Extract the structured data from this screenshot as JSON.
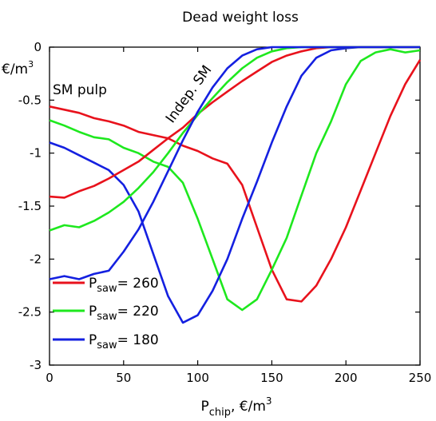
{
  "chart_data": {
    "type": "line",
    "title": "Dead weight loss",
    "xlabel": {
      "main": "P",
      "sub": "chip",
      "rest": ", €/m",
      "sup": "3"
    },
    "ylabel": {
      "main": "€/m",
      "sup": "3"
    },
    "xlim": [
      0,
      250
    ],
    "ylim": [
      -3,
      0
    ],
    "xticks": [
      0,
      50,
      100,
      150,
      200,
      250
    ],
    "yticks": [
      0,
      -0.5,
      -1,
      -1.5,
      -2,
      -2.5,
      -3
    ],
    "xtick_labels": [
      "0",
      "50",
      "100",
      "150",
      "200",
      "250"
    ],
    "ytick_labels": [
      "0",
      "-0.5",
      "-1",
      "-1.5",
      "-2",
      "-2.5",
      "-3"
    ],
    "grid": false,
    "legend_position": "bottom-left",
    "annotations": [
      {
        "text": "SM pulp"
      },
      {
        "text": "Indep. SM"
      }
    ],
    "series": [
      {
        "name": "P_saw = 260",
        "label_main": "P",
        "label_sub": "saw",
        "label_value": "= 260",
        "color": "#e8121c",
        "group": "sm_pulp",
        "points": [
          [
            0,
            -0.56
          ],
          [
            10,
            -0.59
          ],
          [
            20,
            -0.62
          ],
          [
            30,
            -0.67
          ],
          [
            40,
            -0.7
          ],
          [
            50,
            -0.74
          ],
          [
            60,
            -0.8
          ],
          [
            70,
            -0.83
          ],
          [
            80,
            -0.86
          ],
          [
            90,
            -0.93
          ],
          [
            100,
            -0.98
          ],
          [
            110,
            -1.05
          ],
          [
            120,
            -1.1
          ],
          [
            130,
            -1.3
          ],
          [
            140,
            -1.7
          ],
          [
            150,
            -2.1
          ],
          [
            160,
            -2.38
          ],
          [
            170,
            -2.4
          ],
          [
            180,
            -2.25
          ],
          [
            190,
            -2.0
          ],
          [
            200,
            -1.7
          ],
          [
            210,
            -1.35
          ],
          [
            220,
            -1.0
          ],
          [
            230,
            -0.65
          ],
          [
            240,
            -0.35
          ],
          [
            250,
            -0.12
          ]
        ]
      },
      {
        "name": "P_saw = 220",
        "label_main": "P",
        "label_sub": "saw",
        "label_value": "= 220",
        "color": "#1ee81e",
        "group": "sm_pulp",
        "points": [
          [
            0,
            -0.69
          ],
          [
            10,
            -0.74
          ],
          [
            20,
            -0.8
          ],
          [
            30,
            -0.85
          ],
          [
            40,
            -0.87
          ],
          [
            50,
            -0.95
          ],
          [
            60,
            -1.0
          ],
          [
            70,
            -1.08
          ],
          [
            80,
            -1.13
          ],
          [
            90,
            -1.28
          ],
          [
            100,
            -1.62
          ],
          [
            110,
            -2.0
          ],
          [
            120,
            -2.38
          ],
          [
            130,
            -2.48
          ],
          [
            140,
            -2.38
          ],
          [
            150,
            -2.1
          ],
          [
            160,
            -1.8
          ],
          [
            170,
            -1.4
          ],
          [
            180,
            -1.0
          ],
          [
            190,
            -0.7
          ],
          [
            200,
            -0.35
          ],
          [
            210,
            -0.13
          ],
          [
            220,
            -0.05
          ],
          [
            230,
            -0.02
          ],
          [
            240,
            -0.05
          ],
          [
            250,
            -0.03
          ]
        ]
      },
      {
        "name": "P_saw = 180",
        "label_main": "P",
        "label_sub": "saw",
        "label_value": "= 180",
        "color": "#1420e0",
        "group": "sm_pulp",
        "points": [
          [
            0,
            -0.9
          ],
          [
            10,
            -0.95
          ],
          [
            20,
            -1.02
          ],
          [
            30,
            -1.09
          ],
          [
            40,
            -1.16
          ],
          [
            50,
            -1.3
          ],
          [
            60,
            -1.55
          ],
          [
            70,
            -1.95
          ],
          [
            80,
            -2.35
          ],
          [
            90,
            -2.6
          ],
          [
            100,
            -2.53
          ],
          [
            110,
            -2.3
          ],
          [
            120,
            -2.0
          ],
          [
            130,
            -1.62
          ],
          [
            140,
            -1.27
          ],
          [
            150,
            -0.9
          ],
          [
            160,
            -0.56
          ],
          [
            170,
            -0.27
          ],
          [
            180,
            -0.1
          ],
          [
            190,
            -0.03
          ],
          [
            200,
            -0.01
          ],
          [
            210,
            0
          ],
          [
            220,
            0
          ],
          [
            230,
            0
          ],
          [
            240,
            0
          ],
          [
            250,
            0
          ]
        ]
      },
      {
        "name": "Indep. SM 260",
        "color": "#e8121c",
        "group": "indep",
        "points": [
          [
            0,
            -1.41
          ],
          [
            10,
            -1.42
          ],
          [
            20,
            -1.36
          ],
          [
            30,
            -1.31
          ],
          [
            40,
            -1.24
          ],
          [
            50,
            -1.16
          ],
          [
            60,
            -1.08
          ],
          [
            70,
            -0.97
          ],
          [
            80,
            -0.86
          ],
          [
            90,
            -0.76
          ],
          [
            100,
            -0.63
          ],
          [
            110,
            -0.52
          ],
          [
            120,
            -0.42
          ],
          [
            130,
            -0.32
          ],
          [
            140,
            -0.23
          ],
          [
            150,
            -0.14
          ],
          [
            160,
            -0.08
          ],
          [
            170,
            -0.04
          ],
          [
            180,
            -0.01
          ],
          [
            190,
            0
          ],
          [
            200,
            0
          ],
          [
            210,
            0
          ],
          [
            220,
            0
          ],
          [
            230,
            0
          ],
          [
            240,
            0
          ],
          [
            250,
            0
          ]
        ]
      },
      {
        "name": "Indep. SM 220",
        "color": "#1ee81e",
        "group": "indep",
        "points": [
          [
            0,
            -1.73
          ],
          [
            10,
            -1.68
          ],
          [
            20,
            -1.7
          ],
          [
            30,
            -1.64
          ],
          [
            40,
            -1.56
          ],
          [
            50,
            -1.46
          ],
          [
            60,
            -1.33
          ],
          [
            70,
            -1.18
          ],
          [
            80,
            -1.0
          ],
          [
            90,
            -0.81
          ],
          [
            100,
            -0.64
          ],
          [
            110,
            -0.48
          ],
          [
            120,
            -0.33
          ],
          [
            130,
            -0.2
          ],
          [
            140,
            -0.1
          ],
          [
            150,
            -0.04
          ],
          [
            160,
            -0.01
          ],
          [
            170,
            0
          ],
          [
            180,
            0
          ],
          [
            190,
            0
          ],
          [
            200,
            0
          ],
          [
            210,
            0
          ],
          [
            220,
            0
          ],
          [
            230,
            0
          ],
          [
            240,
            0
          ],
          [
            250,
            0
          ]
        ]
      },
      {
        "name": "Indep. SM 180",
        "color": "#1420e0",
        "group": "indep",
        "points": [
          [
            0,
            -2.19
          ],
          [
            10,
            -2.16
          ],
          [
            20,
            -2.19
          ],
          [
            30,
            -2.14
          ],
          [
            40,
            -2.11
          ],
          [
            50,
            -1.93
          ],
          [
            60,
            -1.72
          ],
          [
            70,
            -1.46
          ],
          [
            80,
            -1.17
          ],
          [
            90,
            -0.88
          ],
          [
            100,
            -0.61
          ],
          [
            110,
            -0.38
          ],
          [
            120,
            -0.2
          ],
          [
            130,
            -0.08
          ],
          [
            140,
            -0.02
          ],
          [
            150,
            0
          ],
          [
            160,
            0
          ],
          [
            170,
            0
          ],
          [
            180,
            0
          ],
          [
            190,
            0
          ],
          [
            200,
            0
          ],
          [
            210,
            0
          ],
          [
            220,
            0
          ],
          [
            230,
            0
          ],
          [
            240,
            0
          ],
          [
            250,
            0
          ]
        ]
      }
    ]
  }
}
